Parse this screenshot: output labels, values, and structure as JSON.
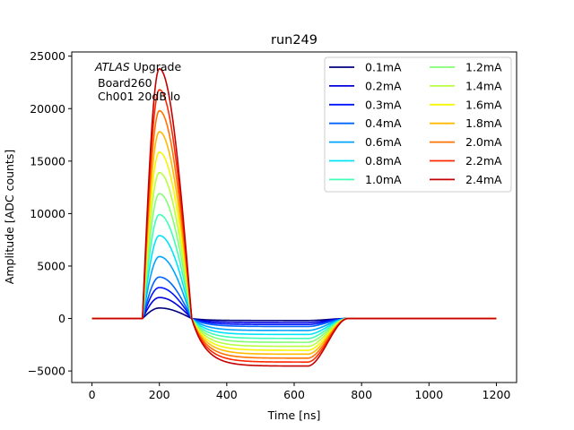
{
  "chart_data": {
    "type": "line",
    "title": "run249",
    "xlabel": "Time [ns]",
    "ylabel": "Amplitude [ADC counts]",
    "xlim": [
      -60,
      1260
    ],
    "ylim": [
      -6100,
      25400
    ],
    "xticks": [
      0,
      200,
      400,
      600,
      800,
      1000,
      1200
    ],
    "yticks": [
      -5000,
      0,
      5000,
      10000,
      15000,
      20000,
      25000
    ],
    "xtick_labels": [
      "0",
      "200",
      "400",
      "600",
      "800",
      "1000",
      "1200"
    ],
    "ytick_labels": [
      "−5000",
      "0",
      "5000",
      "10000",
      "15000",
      "20000",
      "25000"
    ],
    "grid": false,
    "legend_position": "top-right",
    "legend_columns": 2,
    "annotation": {
      "italic_part": "ATLAS",
      "rest": " Upgrade",
      "line2": "Board260",
      "line3": "Ch001 20dB lo"
    },
    "pulse_model": {
      "onset_ns": 150,
      "peak_ns": 200,
      "zero_cross_ns": 296,
      "undershoot_recover_start_ns": 640,
      "undershoot_recover_end_ns": 760,
      "x_start_ns": 0,
      "x_end_ns": 1200
    },
    "series": [
      {
        "name": "0.1mA",
        "peak": 1000,
        "undershoot": -190,
        "color": "#00007f"
      },
      {
        "name": "0.2mA",
        "peak": 2000,
        "undershoot": -380,
        "color": "#0000db"
      },
      {
        "name": "0.3mA",
        "peak": 2950,
        "undershoot": -570,
        "color": "#0014ff"
      },
      {
        "name": "0.4mA",
        "peak": 3950,
        "undershoot": -760,
        "color": "#0064ff"
      },
      {
        "name": "0.6mA",
        "peak": 5900,
        "undershoot": -1140,
        "color": "#00a4ff"
      },
      {
        "name": "0.8mA",
        "peak": 7900,
        "undershoot": -1520,
        "color": "#00e4f7"
      },
      {
        "name": "1.0mA",
        "peak": 9900,
        "undershoot": -1900,
        "color": "#3fffb7"
      },
      {
        "name": "1.2mA",
        "peak": 11900,
        "undershoot": -2270,
        "color": "#83ff73"
      },
      {
        "name": "1.4mA",
        "peak": 13900,
        "undershoot": -2650,
        "color": "#b7ff3f"
      },
      {
        "name": "1.6mA",
        "peak": 15850,
        "undershoot": -3030,
        "color": "#f4f802"
      },
      {
        "name": "1.8mA",
        "peak": 17800,
        "undershoot": -3400,
        "color": "#ffb900"
      },
      {
        "name": "2.0mA",
        "peak": 19800,
        "undershoot": -3780,
        "color": "#ff7300"
      },
      {
        "name": "2.2mA",
        "peak": 21800,
        "undershoot": -4150,
        "color": "#ff2900"
      },
      {
        "name": "2.4mA",
        "peak": 23800,
        "undershoot": -4530,
        "color": "#c40000"
      }
    ]
  }
}
